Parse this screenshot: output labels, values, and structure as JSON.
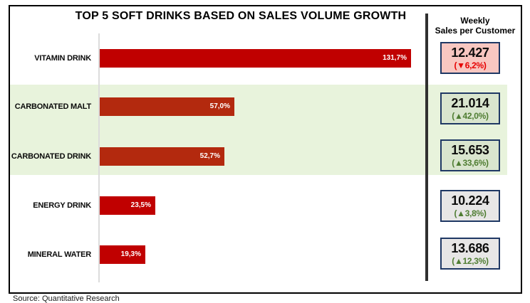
{
  "title": "TOP 5 SOFT DRINKS BASED ON SALES VOLUME GROWTH",
  "source": "Source: Quantitative Research",
  "panel_header": {
    "line1": "Weekly",
    "line2": "Sales per Customer"
  },
  "colors": {
    "bar_red": "#C00000",
    "bar_brick": "#B3290E",
    "highlight_band": "#E8F3DC",
    "box_border": "#1F3864",
    "negative_change": "#E60000",
    "positive_change": "#4F7D32",
    "box_fill_negative": "#F8C7C1",
    "box_fill_highlight": "#D9E5CE",
    "box_fill_neutral": "#E7E6E6"
  },
  "chart_data": {
    "type": "bar",
    "orientation": "horizontal",
    "title": "TOP 5 SOFT DRINKS BASED ON SALES VOLUME GROWTH",
    "categories": [
      "VITAMIN DRINK",
      "CARBONATED MALT",
      "CARBONATED DRINK",
      "ENERGY DRINK",
      "MINERAL WATER"
    ],
    "values": [
      131.7,
      57.0,
      52.7,
      23.5,
      19.3
    ],
    "value_labels": [
      "131,7%",
      "57,0%",
      "52,7%",
      "23,5%",
      "19,3%"
    ],
    "unit": "%",
    "xlim": [
      0,
      138
    ],
    "grid": false,
    "legend": "none",
    "highlighted_categories": [
      "CARBONATED MALT",
      "CARBONATED DRINK"
    ],
    "side_metric": {
      "header": "Weekly Sales per Customer",
      "values": [
        "12.427",
        "21.014",
        "15.653",
        "10.224",
        "13.686"
      ],
      "changes": [
        "(▼6,2%)",
        "(▲42,0%)",
        "(▲33,6%)",
        "(▲3,8%)",
        "(▲12,3%)"
      ],
      "directions": [
        "down",
        "up",
        "up",
        "up",
        "up"
      ]
    }
  },
  "rows": [
    {
      "label": "VITAMIN DRINK",
      "value": 131.7,
      "value_label": "131,7%",
      "bar_color": "#C00000",
      "highlight": false,
      "box": {
        "value": "12.427",
        "change": "(▼6,2%)",
        "fill": "#F8C7C1",
        "change_color": "#E60000"
      }
    },
    {
      "label": "CARBONATED MALT",
      "value": 57.0,
      "value_label": "57,0%",
      "bar_color": "#B3290E",
      "highlight": true,
      "box": {
        "value": "21.014",
        "change": "(▲42,0%)",
        "fill": "#D9E5CE",
        "change_color": "#4F7D32"
      }
    },
    {
      "label": "CARBONATED DRINK",
      "value": 52.7,
      "value_label": "52,7%",
      "bar_color": "#B3290E",
      "highlight": true,
      "box": {
        "value": "15.653",
        "change": "(▲33,6%)",
        "fill": "#D9E5CE",
        "change_color": "#4F7D32"
      }
    },
    {
      "label": "ENERGY DRINK",
      "value": 23.5,
      "value_label": "23,5%",
      "bar_color": "#C00000",
      "highlight": false,
      "box": {
        "value": "10.224",
        "change": "(▲3,8%)",
        "fill": "#E7E6E6",
        "change_color": "#4F7D32"
      }
    },
    {
      "label": "MINERAL WATER",
      "value": 19.3,
      "value_label": "19,3%",
      "bar_color": "#C00000",
      "highlight": false,
      "box": {
        "value": "13.686",
        "change": "(▲12,3%)",
        "fill": "#E7E6E6",
        "change_color": "#4F7D32"
      }
    }
  ]
}
